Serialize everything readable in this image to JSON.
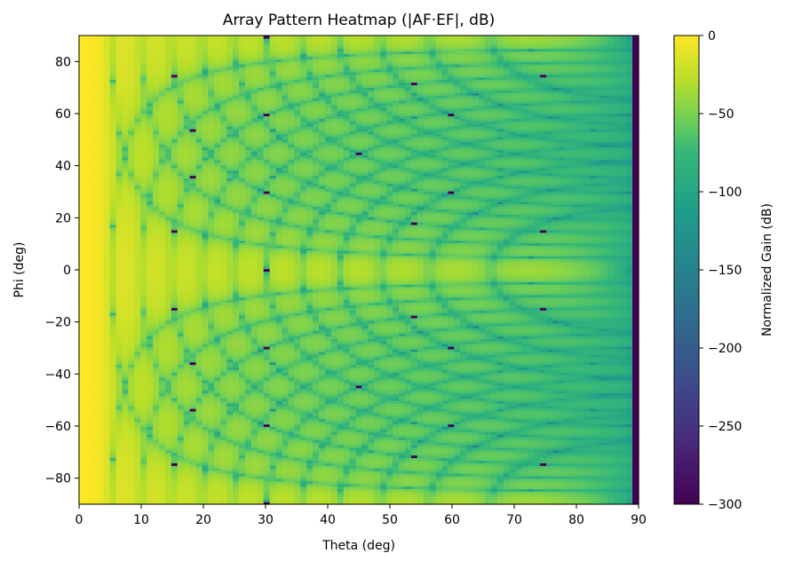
{
  "chart_data": {
    "type": "heatmap",
    "title": "Array Pattern Heatmap (|AF·EF|, dB)",
    "xlabel": "Theta (deg)",
    "ylabel": "Phi (deg)",
    "xlim": [
      0,
      90
    ],
    "ylim": [
      -90,
      90
    ],
    "x_step": 1,
    "y_step": 1,
    "x_ticks": [
      "0",
      "10",
      "20",
      "30",
      "40",
      "50",
      "60",
      "70",
      "80",
      "90"
    ],
    "y_ticks": [
      "80",
      "60",
      "40",
      "20",
      "0",
      "−20",
      "−40",
      "−60",
      "−80"
    ],
    "colorbar": {
      "label": "Normalized Gain (dB)",
      "range": [
        -300,
        0
      ],
      "ticks": [
        "0",
        "−50",
        "−100",
        "−150",
        "−200",
        "−250",
        "−300"
      ],
      "colormap": "viridis"
    },
    "floor_db": -300,
    "floor_points": [
      [
        15,
        75
      ],
      [
        15,
        -75
      ],
      [
        18,
        54
      ],
      [
        18,
        -54
      ],
      [
        30,
        30
      ],
      [
        30,
        -30
      ],
      [
        30,
        90
      ],
      [
        30,
        -90
      ],
      [
        45,
        45
      ],
      [
        45,
        -45
      ],
      [
        54,
        18
      ],
      [
        54,
        -18
      ],
      [
        60,
        60
      ],
      [
        60,
        -60
      ],
      [
        75,
        15
      ],
      [
        75,
        -15
      ]
    ],
    "floor_column_theta": 90,
    "grid": false
  }
}
